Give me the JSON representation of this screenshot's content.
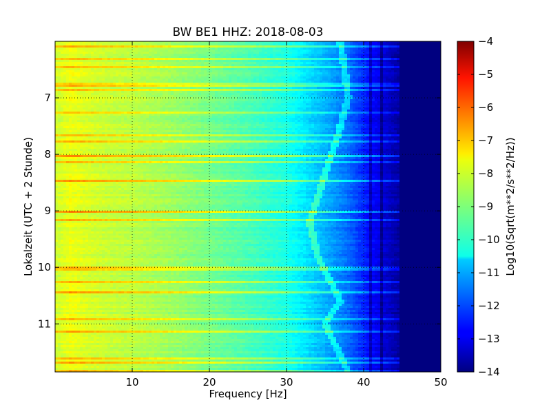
{
  "chart_data": {
    "type": "heatmap",
    "title": "BW BE1 HHZ: 2018-08-03",
    "xlabel": "Frequency [Hz]",
    "ylabel": "Lokalzeit (UTC + 2 Stunde)",
    "xlim": [
      0,
      50
    ],
    "ylim": [
      6.0,
      11.85
    ],
    "y_inverted": true,
    "x_ticks": [
      10,
      20,
      30,
      40,
      50
    ],
    "x_tick_labels": [
      "10",
      "20",
      "30",
      "40",
      "50"
    ],
    "y_ticks": [
      7,
      8,
      9,
      10,
      11
    ],
    "y_tick_labels": [
      "7",
      "8",
      "9",
      "10",
      "11"
    ],
    "grid": true,
    "colormap": "jet",
    "colorbar": {
      "label": "Log10(Sqrt(m**2/s**2/Hz))",
      "range": [
        -14,
        -4
      ],
      "ticks": [
        -4,
        -5,
        -6,
        -7,
        -8,
        -9,
        -10,
        -11,
        -12,
        -13,
        -14
      ],
      "tick_labels": [
        "−4",
        "−5",
        "−6",
        "−7",
        "−8",
        "−9",
        "−10",
        "−11",
        "−12",
        "−13",
        "−14"
      ]
    },
    "spectrum_profile": {
      "frequency_hz": [
        0.5,
        2,
        4,
        7,
        10,
        15,
        20,
        25,
        30,
        32,
        35,
        38,
        40,
        42,
        45,
        50
      ],
      "log10_amplitude": [
        -8.2,
        -7.9,
        -8.1,
        -8.3,
        -8.4,
        -8.7,
        -9.1,
        -9.5,
        -10.0,
        -10.4,
        -11.0,
        -11.7,
        -12.4,
        -13.0,
        -13.8,
        -14.0
      ]
    },
    "features": {
      "drifting_line_near_hz": [
        37,
        38,
        37,
        33,
        34,
        37,
        35,
        38
      ],
      "drifting_line_at_time": [
        6.0,
        7.0,
        7.5,
        9.2,
        9.8,
        10.6,
        11.0,
        11.85
      ]
    }
  }
}
